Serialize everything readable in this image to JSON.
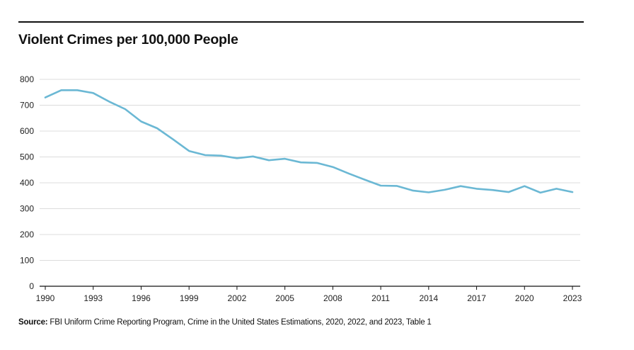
{
  "chart_data": {
    "type": "line",
    "title": "Violent Crimes per 100,000 People",
    "xlabel": "",
    "ylabel": "",
    "x": [
      1990,
      1991,
      1992,
      1993,
      1994,
      1995,
      1996,
      1997,
      1998,
      1999,
      2000,
      2001,
      2002,
      2003,
      2004,
      2005,
      2006,
      2007,
      2008,
      2009,
      2010,
      2011,
      2012,
      2013,
      2014,
      2015,
      2016,
      2017,
      2018,
      2019,
      2020,
      2021,
      2022,
      2023
    ],
    "series": [
      {
        "name": "Violent crime rate",
        "color": "#6bb8d4",
        "values": [
          730,
          758,
          758,
          747,
          714,
          685,
          637,
          611,
          568,
          523,
          507,
          505,
          495,
          502,
          487,
          493,
          479,
          477,
          461,
          436,
          412,
          389,
          388,
          370,
          363,
          373,
          387,
          377,
          372,
          364,
          387,
          362,
          377,
          364
        ]
      }
    ],
    "xticks": [
      1990,
      1993,
      1996,
      1999,
      2002,
      2005,
      2008,
      2011,
      2014,
      2017,
      2020,
      2023
    ],
    "yticks": [
      0,
      100,
      200,
      300,
      400,
      500,
      600,
      700,
      800
    ],
    "xlim": [
      1990,
      2023
    ],
    "ylim": [
      0,
      800
    ],
    "grid": true,
    "legend": "none"
  },
  "source": {
    "label": "Source:",
    "text": " FBI Uniform Crime Reporting Program, Crime in the United States Estimations, 2020, 2022, and 2023, Table 1"
  }
}
